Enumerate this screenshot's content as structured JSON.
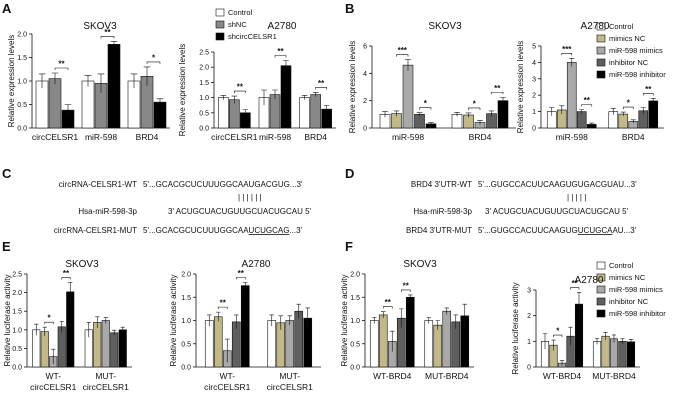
{
  "colors": {
    "c0": "#ffffff",
    "c1": "#c2b987",
    "c2": "#a9a9a9",
    "c3": "#5f5f5f",
    "c4": "#000000",
    "c_a0": "#ffffff",
    "c_a1": "#888888",
    "c_a2": "#000000"
  },
  "panels": {
    "A": "A",
    "B": "B",
    "C": "C",
    "D": "D",
    "E": "E",
    "F": "F"
  },
  "legendA": [
    "Control",
    "shNC",
    "shcircCELSR1"
  ],
  "legendB": [
    "Control",
    "mimics NC",
    "miR-598 mimics",
    "inhibitor NC",
    "miR-598 inhibitor"
  ],
  "sequences": {
    "C": {
      "row1_label": "circRNA-CELSR1-WT",
      "row1_seq": "5'...GCACGCUCUUUGGCAAUGACGUG...3'",
      "row2_label": "Hsa-miR-598-3p",
      "row2_seq": "3' ACUGCUACUGUUGCUACUGCAU 5'",
      "row3_label": "circRNA-CELSR1-MUT",
      "row3_seq_pre": "5'...GCACGCUCUUUGGCAA",
      "row3_seq_mut": "UCUGCAG",
      "row3_seq_post": "...3'"
    },
    "D": {
      "row1_label": "BRD4 3'UTR-WT",
      "row1_seq": "5'...GUGCCACUUCAAGUGUGACGUAU...3'",
      "row2_label": "Hsa-miR-598-3p",
      "row2_seq": "3' ACUGCUACUGUUGCUACUGCAU 5'",
      "row3_label": "BRD4 3'UTR-MUT",
      "row3_seq_pre": "5'...GUGCCACUUCAAGUG",
      "row3_seq_mut": "UCUGCA",
      "row3_seq_post": "AU...3'"
    }
  },
  "chart_data": [
    {
      "id": "A1",
      "type": "bar",
      "title": "SKOV3",
      "ylabel": "Relative expression levels",
      "ylim": [
        0,
        2.0
      ],
      "yticks": [
        0,
        0.5,
        1.0,
        1.5,
        2.0
      ],
      "categories": [
        "circCELSR1",
        "miR-598",
        "BRD4"
      ],
      "series": [
        {
          "name": "Control",
          "values": [
            1.0,
            1.0,
            1.0
          ],
          "err": [
            0.15,
            0.12,
            0.15
          ]
        },
        {
          "name": "shNC",
          "values": [
            1.05,
            0.95,
            1.1
          ],
          "err": [
            0.12,
            0.2,
            0.2
          ]
        },
        {
          "name": "shcircCELSR1",
          "values": [
            0.38,
            1.78,
            0.55
          ],
          "err": [
            0.12,
            0.06,
            0.07
          ]
        }
      ],
      "sig": [
        {
          "cat": 0,
          "from": 1,
          "to": 2,
          "label": "**"
        },
        {
          "cat": 1,
          "from": 1,
          "to": 2,
          "label": "**"
        },
        {
          "cat": 2,
          "from": 1,
          "to": 2,
          "label": "*"
        }
      ]
    },
    {
      "id": "A2",
      "type": "bar",
      "title": "A2780",
      "ylabel": "Relative expression levels",
      "ylim": [
        0,
        2.5
      ],
      "yticks": [
        0,
        0.5,
        1.0,
        1.5,
        2.0,
        2.5
      ],
      "categories": [
        "circCELSR1",
        "miR-598",
        "BRD4"
      ],
      "series": [
        {
          "name": "Control",
          "values": [
            1.0,
            1.0,
            1.0
          ],
          "err": [
            0.07,
            0.25,
            0.07
          ]
        },
        {
          "name": "shNC",
          "values": [
            0.93,
            1.1,
            1.1
          ],
          "err": [
            0.12,
            0.15,
            0.07
          ]
        },
        {
          "name": "shcircCELSR1",
          "values": [
            0.5,
            2.05,
            0.62
          ],
          "err": [
            0.1,
            0.17,
            0.12
          ]
        }
      ],
      "sig": [
        {
          "cat": 0,
          "from": 1,
          "to": 2,
          "label": "**"
        },
        {
          "cat": 1,
          "from": 1,
          "to": 2,
          "label": "**"
        },
        {
          "cat": 2,
          "from": 1,
          "to": 2,
          "label": "**"
        }
      ]
    },
    {
      "id": "B1",
      "type": "bar",
      "title": "SKOV3",
      "ylabel": "Relative expression levels",
      "ylim": [
        0,
        6
      ],
      "yticks": [
        0,
        2,
        4,
        6
      ],
      "categories": [
        "miR-598",
        "BRD4"
      ],
      "series": [
        {
          "name": "Control",
          "values": [
            1.0,
            1.0
          ],
          "err": [
            0.2,
            0.15
          ]
        },
        {
          "name": "mimics NC",
          "values": [
            1.05,
            0.95
          ],
          "err": [
            0.2,
            0.15
          ]
        },
        {
          "name": "miR-598 mimics",
          "values": [
            4.6,
            0.4
          ],
          "err": [
            0.4,
            0.15
          ]
        },
        {
          "name": "inhibitor NC",
          "values": [
            1.0,
            1.05
          ],
          "err": [
            0.12,
            0.2
          ]
        },
        {
          "name": "miR-598 inhibitor",
          "values": [
            0.3,
            2.0
          ],
          "err": [
            0.1,
            0.25
          ]
        }
      ],
      "sig": [
        {
          "cat": 0,
          "from": 1,
          "to": 2,
          "label": "***"
        },
        {
          "cat": 0,
          "from": 3,
          "to": 4,
          "label": "*"
        },
        {
          "cat": 1,
          "from": 1,
          "to": 2,
          "label": "*"
        },
        {
          "cat": 1,
          "from": 3,
          "to": 4,
          "label": "**"
        }
      ]
    },
    {
      "id": "B2",
      "type": "bar",
      "title": "A2780",
      "ylabel": "Relative expression levels",
      "ylim": [
        0,
        5
      ],
      "yticks": [
        0,
        1,
        2,
        3,
        4,
        5
      ],
      "categories": [
        "miR-598",
        "BRD4"
      ],
      "series": [
        {
          "name": "Control",
          "values": [
            1.0,
            1.0
          ],
          "err": [
            0.25,
            0.2
          ]
        },
        {
          "name": "mimics NC",
          "values": [
            1.1,
            0.85
          ],
          "err": [
            0.25,
            0.12
          ]
        },
        {
          "name": "miR-598 mimics",
          "values": [
            4.0,
            0.4
          ],
          "err": [
            0.25,
            0.1
          ]
        },
        {
          "name": "inhibitor NC",
          "values": [
            1.0,
            1.05
          ],
          "err": [
            0.12,
            0.2
          ]
        },
        {
          "name": "miR-598 inhibitor",
          "values": [
            0.22,
            1.65
          ],
          "err": [
            0.08,
            0.15
          ]
        }
      ],
      "sig": [
        {
          "cat": 0,
          "from": 1,
          "to": 2,
          "label": "***"
        },
        {
          "cat": 0,
          "from": 3,
          "to": 4,
          "label": "**"
        },
        {
          "cat": 1,
          "from": 1,
          "to": 2,
          "label": "*"
        },
        {
          "cat": 1,
          "from": 3,
          "to": 4,
          "label": "**"
        }
      ]
    },
    {
      "id": "E1",
      "type": "bar",
      "title": "SKOV3",
      "ylabel": "Relative luciferase activity",
      "ylim": [
        0,
        2.5
      ],
      "yticks": [
        0,
        0.5,
        1.0,
        1.5,
        2.0,
        2.5
      ],
      "categories": [
        "WT-circCELSR1",
        "MUT-circCELSR1"
      ],
      "series": [
        {
          "name": "Control",
          "values": [
            1.0,
            1.0
          ],
          "err": [
            0.15,
            0.2
          ]
        },
        {
          "name": "mimics NC",
          "values": [
            0.95,
            1.2
          ],
          "err": [
            0.12,
            0.15
          ]
        },
        {
          "name": "miR-598 mimics",
          "values": [
            0.28,
            1.25
          ],
          "err": [
            0.2,
            0.08
          ]
        },
        {
          "name": "inhibitor NC",
          "values": [
            1.08,
            0.92
          ],
          "err": [
            0.15,
            0.07
          ]
        },
        {
          "name": "miR-598 inhibitor",
          "values": [
            2.02,
            1.0
          ],
          "err": [
            0.25,
            0.07
          ]
        }
      ],
      "sig": [
        {
          "cat": 0,
          "from": 1,
          "to": 2,
          "label": "*"
        },
        {
          "cat": 0,
          "from": 3,
          "to": 4,
          "label": "**"
        }
      ]
    },
    {
      "id": "E2",
      "type": "bar",
      "title": "A2780",
      "ylabel": "Relative luciferase activity",
      "ylim": [
        0,
        2.0
      ],
      "yticks": [
        0,
        0.5,
        1.0,
        1.5,
        2.0
      ],
      "categories": [
        "WT-circCELSR1",
        "MUT-circCELSR1"
      ],
      "series": [
        {
          "name": "Control",
          "values": [
            1.0,
            1.0
          ],
          "err": [
            0.12,
            0.12
          ]
        },
        {
          "name": "mimics NC",
          "values": [
            1.08,
            0.95
          ],
          "err": [
            0.1,
            0.15
          ]
        },
        {
          "name": "miR-598 mimics",
          "values": [
            0.35,
            1.0
          ],
          "err": [
            0.25,
            0.1
          ]
        },
        {
          "name": "inhibitor NC",
          "values": [
            0.97,
            1.2
          ],
          "err": [
            0.15,
            0.15
          ]
        },
        {
          "name": "miR-598 inhibitor",
          "values": [
            1.75,
            1.05
          ],
          "err": [
            0.07,
            0.22
          ]
        }
      ],
      "sig": [
        {
          "cat": 0,
          "from": 1,
          "to": 2,
          "label": "**"
        },
        {
          "cat": 0,
          "from": 3,
          "to": 4,
          "label": "**"
        }
      ]
    },
    {
      "id": "F1",
      "type": "bar",
      "title": "SKOV3",
      "ylabel": "Relative luciferase activity",
      "ylim": [
        0,
        2.0
      ],
      "yticks": [
        0,
        0.5,
        1.0,
        1.5,
        2.0
      ],
      "categories": [
        "WT-BRD4",
        "MUT-BRD4"
      ],
      "series": [
        {
          "name": "Control",
          "values": [
            1.0,
            1.0
          ],
          "err": [
            0.07,
            0.07
          ]
        },
        {
          "name": "mimics NC",
          "values": [
            1.12,
            0.9
          ],
          "err": [
            0.07,
            0.1
          ]
        },
        {
          "name": "miR-598 mimics",
          "values": [
            0.55,
            1.2
          ],
          "err": [
            0.22,
            0.07
          ]
        },
        {
          "name": "inhibitor NC",
          "values": [
            1.05,
            0.97
          ],
          "err": [
            0.2,
            0.15
          ]
        },
        {
          "name": "miR-598 inhibitor",
          "values": [
            1.5,
            1.1
          ],
          "err": [
            0.05,
            0.25
          ]
        }
      ],
      "sig": [
        {
          "cat": 0,
          "from": 1,
          "to": 2,
          "label": "**"
        },
        {
          "cat": 0,
          "from": 3,
          "to": 4,
          "label": "**"
        }
      ]
    },
    {
      "id": "F2",
      "type": "bar",
      "title": "A2780",
      "ylabel": "Relative luciferase activity",
      "ylim": [
        0,
        3
      ],
      "yticks": [
        0,
        1,
        2,
        3
      ],
      "categories": [
        "WT-BRD4",
        "MUT-BRD4"
      ],
      "series": [
        {
          "name": "Control",
          "values": [
            1.0,
            1.0
          ],
          "err": [
            0.3,
            0.12
          ]
        },
        {
          "name": "mimics NC",
          "values": [
            0.85,
            1.2
          ],
          "err": [
            0.2,
            0.15
          ]
        },
        {
          "name": "miR-598 mimics",
          "values": [
            0.15,
            1.1
          ],
          "err": [
            0.1,
            0.15
          ]
        },
        {
          "name": "inhibitor NC",
          "values": [
            1.2,
            1.0
          ],
          "err": [
            0.35,
            0.1
          ]
        },
        {
          "name": "miR-598 inhibitor",
          "values": [
            2.45,
            0.98
          ],
          "err": [
            0.45,
            0.1
          ]
        }
      ],
      "sig": [
        {
          "cat": 0,
          "from": 1,
          "to": 2,
          "label": "*"
        },
        {
          "cat": 0,
          "from": 3,
          "to": 4,
          "label": "**"
        }
      ]
    }
  ]
}
